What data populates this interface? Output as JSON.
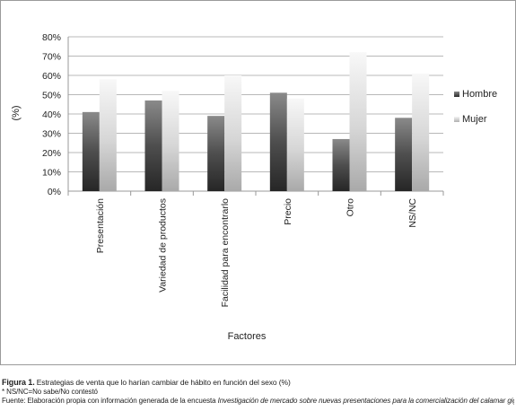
{
  "chart_data": {
    "type": "bar",
    "categories": [
      "Presentación",
      "Variedad de productos",
      "Facilidad para encontrarlo",
      "Precio",
      "Otro",
      "NS/NC"
    ],
    "series": [
      {
        "name": "Hombre",
        "values": [
          41,
          47,
          39,
          51,
          27,
          38
        ],
        "color": "#4a4a4a"
      },
      {
        "name": "Mujer",
        "values": [
          58,
          52,
          60,
          48,
          72,
          61
        ],
        "color": "#dcdcdc"
      }
    ],
    "ytick_labels": [
      "0%",
      "10%",
      "20%",
      "30%",
      "40%",
      "50%",
      "60%",
      "70%",
      "80%"
    ],
    "ylim": [
      0,
      80
    ],
    "ylabel": "(%)",
    "xlabel": "Factores",
    "grid": true,
    "legend_position": "right",
    "style": "3d-shaded-bars"
  },
  "caption": {
    "figure_label": "Figura 1.",
    "title": "Estrategias de venta que lo harían cambiar de hábito en función del sexo (%)",
    "note": "* NS/NC=No sabe/No contestó",
    "source_prefix": "Fuente: Elaboración propia con información generada de la encuesta ",
    "source_title": "Investigación de mercado sobre nuevas presentaciones para la comercialización del calamar gigante en Baja California Sur"
  }
}
